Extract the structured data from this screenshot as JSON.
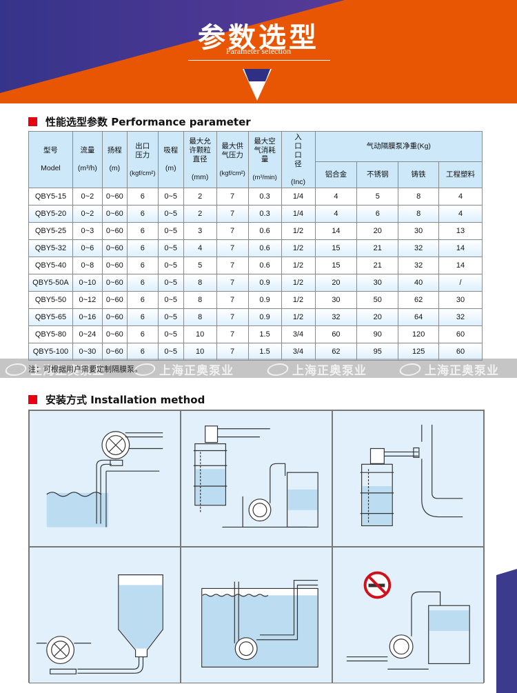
{
  "banner": {
    "title": "参数选型",
    "subtitle": "Parameter selection",
    "colors": {
      "orange": "#e85604",
      "purple": "#3b3a8c"
    }
  },
  "performance": {
    "heading": "性能选型参数 Performance parameter",
    "headers": {
      "model": "型号",
      "model_en": "Model",
      "flow": "流量",
      "flow_unit": "(m³/h)",
      "head": "扬程",
      "head_unit": "(m)",
      "outlet": "出口压力",
      "outlet_unit": "(kgf/cm²)",
      "suction": "吸程",
      "suction_unit": "(m)",
      "particle": "最大允许颗粒直径",
      "particle_unit": "(mm)",
      "air_pressure": "最大供气压力",
      "air_pressure_unit": "(kgf/cm²)",
      "air_use": "最大空气消耗量",
      "air_use_unit": "(m³/min)",
      "inlet": "入口口径",
      "inlet_unit": "(Inc)",
      "weight": "气动隔膜泵净重(Kg)",
      "materials": [
        "铝合金",
        "不锈钢",
        "铸铁",
        "工程塑料"
      ]
    },
    "rows": [
      [
        "QBY5-15",
        "0~2",
        "0~60",
        "6",
        "0~5",
        "2",
        "7",
        "0.3",
        "1/4",
        "4",
        "5",
        "8",
        "4"
      ],
      [
        "QBY5-20",
        "0~2",
        "0~60",
        "6",
        "0~5",
        "2",
        "7",
        "0.3",
        "1/4",
        "4",
        "6",
        "8",
        "4"
      ],
      [
        "QBY5-25",
        "0~3",
        "0~60",
        "6",
        "0~5",
        "3",
        "7",
        "0.6",
        "1/2",
        "14",
        "20",
        "30",
        "13"
      ],
      [
        "QBY5-32",
        "0~6",
        "0~60",
        "6",
        "0~5",
        "4",
        "7",
        "0.6",
        "1/2",
        "15",
        "21",
        "32",
        "14"
      ],
      [
        "QBY5-40",
        "0~8",
        "0~60",
        "6",
        "0~5",
        "5",
        "7",
        "0.6",
        "1/2",
        "15",
        "21",
        "32",
        "14"
      ],
      [
        "QBY5-50A",
        "0~10",
        "0~60",
        "6",
        "0~5",
        "8",
        "7",
        "0.9",
        "1/2",
        "20",
        "30",
        "40",
        "/"
      ],
      [
        "QBY5-50",
        "0~12",
        "0~60",
        "6",
        "0~5",
        "8",
        "7",
        "0.9",
        "1/2",
        "30",
        "50",
        "62",
        "30"
      ],
      [
        "QBY5-65",
        "0~16",
        "0~60",
        "6",
        "0~5",
        "8",
        "7",
        "0.9",
        "1/2",
        "32",
        "20",
        "64",
        "32"
      ],
      [
        "QBY5-80",
        "0~24",
        "0~60",
        "6",
        "0~5",
        "10",
        "7",
        "1.5",
        "3/4",
        "60",
        "90",
        "120",
        "60"
      ],
      [
        "QBY5-100",
        "0~30",
        "0~60",
        "6",
        "0~5",
        "10",
        "7",
        "1.5",
        "3/4",
        "62",
        "95",
        "125",
        "60"
      ]
    ],
    "note": "注：可根据用户需要定制隔膜泵。"
  },
  "watermark": "上海正奥泵业",
  "installation": {
    "heading": "安装方式 Installation method"
  }
}
